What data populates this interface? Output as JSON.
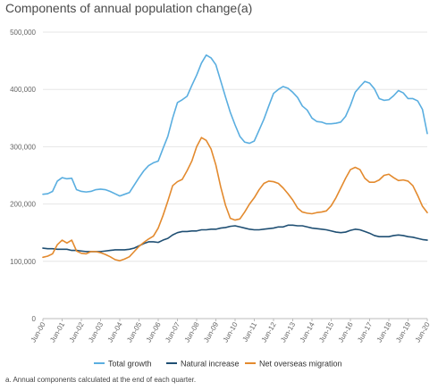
{
  "chart_title": "Components of annual population change(a)",
  "footnote": "a. Annual components calculated at the end of each quarter.",
  "chart_data": {
    "type": "line",
    "title": "Components of annual population change(a)",
    "xlabel": "",
    "ylabel": "",
    "ylim": [
      0,
      500000
    ],
    "yticks": [
      0,
      100000,
      200000,
      300000,
      400000,
      500000
    ],
    "ytick_labels": [
      "0",
      "100,000",
      "200,000",
      "300,000",
      "400,000",
      "500,000"
    ],
    "xtick_labels": [
      "Jun-00",
      "Jun-01",
      "Jun-02",
      "Jun-03",
      "Jun-04",
      "Jun-05",
      "Jun-06",
      "Jun-07",
      "Jun-08",
      "Jun-09",
      "Jun-10",
      "Jun-11",
      "Jun-12",
      "Jun-13",
      "Jun-14",
      "Jun-15",
      "Jun-16",
      "Jun-17",
      "Jun-18",
      "Jun-19",
      "Jun-20"
    ],
    "grid": "horizontal",
    "legend_position": "bottom",
    "series": [
      {
        "name": "Total growth",
        "color": "#5aaee0",
        "values": [
          217000,
          218000,
          222000,
          240000,
          246000,
          244000,
          245000,
          225000,
          222000,
          221000,
          222000,
          225000,
          226000,
          225000,
          222000,
          218000,
          214000,
          217000,
          220000,
          233000,
          246000,
          258000,
          267000,
          272000,
          275000,
          297000,
          318000,
          350000,
          377000,
          382000,
          388000,
          407000,
          425000,
          446000,
          460000,
          455000,
          443000,
          415000,
          387000,
          360000,
          338000,
          318000,
          308000,
          306000,
          310000,
          329000,
          348000,
          371000,
          393000,
          400000,
          405000,
          402000,
          395000,
          386000,
          371000,
          364000,
          350000,
          344000,
          343000,
          340000,
          340000,
          341000,
          343000,
          353000,
          372000,
          395000,
          405000,
          414000,
          411000,
          401000,
          384000,
          381000,
          382000,
          389000,
          398000,
          394000,
          384000,
          384000,
          380000,
          365000,
          323000
        ]
      },
      {
        "name": "Natural increase",
        "color": "#1f4f73",
        "values": [
          123000,
          122000,
          122000,
          121000,
          121000,
          121000,
          119000,
          119000,
          118000,
          117000,
          117000,
          117000,
          117000,
          118000,
          119000,
          120000,
          120000,
          120000,
          121000,
          123000,
          127000,
          131000,
          134000,
          134000,
          133000,
          137000,
          140000,
          146000,
          150000,
          152000,
          152000,
          153000,
          153000,
          155000,
          155000,
          156000,
          156000,
          158000,
          159000,
          161000,
          162000,
          160000,
          158000,
          156000,
          155000,
          155000,
          156000,
          157000,
          158000,
          160000,
          160000,
          163000,
          163000,
          162000,
          162000,
          160000,
          158000,
          157000,
          156000,
          155000,
          153000,
          151000,
          150000,
          151000,
          154000,
          156000,
          155000,
          152000,
          149000,
          145000,
          143000,
          143000,
          143000,
          145000,
          146000,
          145000,
          143000,
          142000,
          140000,
          138000,
          137000
        ]
      },
      {
        "name": "Net overseas migration",
        "color": "#e38a2e",
        "values": [
          107000,
          109000,
          113000,
          129000,
          137000,
          132000,
          137000,
          118000,
          114000,
          113000,
          117000,
          117000,
          115000,
          112000,
          108000,
          103000,
          101000,
          104000,
          108000,
          117000,
          126000,
          133000,
          139000,
          144000,
          158000,
          180000,
          205000,
          232000,
          239000,
          243000,
          258000,
          275000,
          300000,
          316000,
          311000,
          296000,
          268000,
          230000,
          198000,
          175000,
          172000,
          174000,
          186000,
          200000,
          211000,
          225000,
          236000,
          240000,
          239000,
          236000,
          228000,
          218000,
          207000,
          193000,
          186000,
          184000,
          183000,
          185000,
          186000,
          188000,
          197000,
          211000,
          228000,
          245000,
          260000,
          264000,
          260000,
          245000,
          238000,
          238000,
          242000,
          250000,
          252000,
          246000,
          241000,
          242000,
          240000,
          232000,
          215000,
          196000,
          185000
        ]
      }
    ]
  }
}
